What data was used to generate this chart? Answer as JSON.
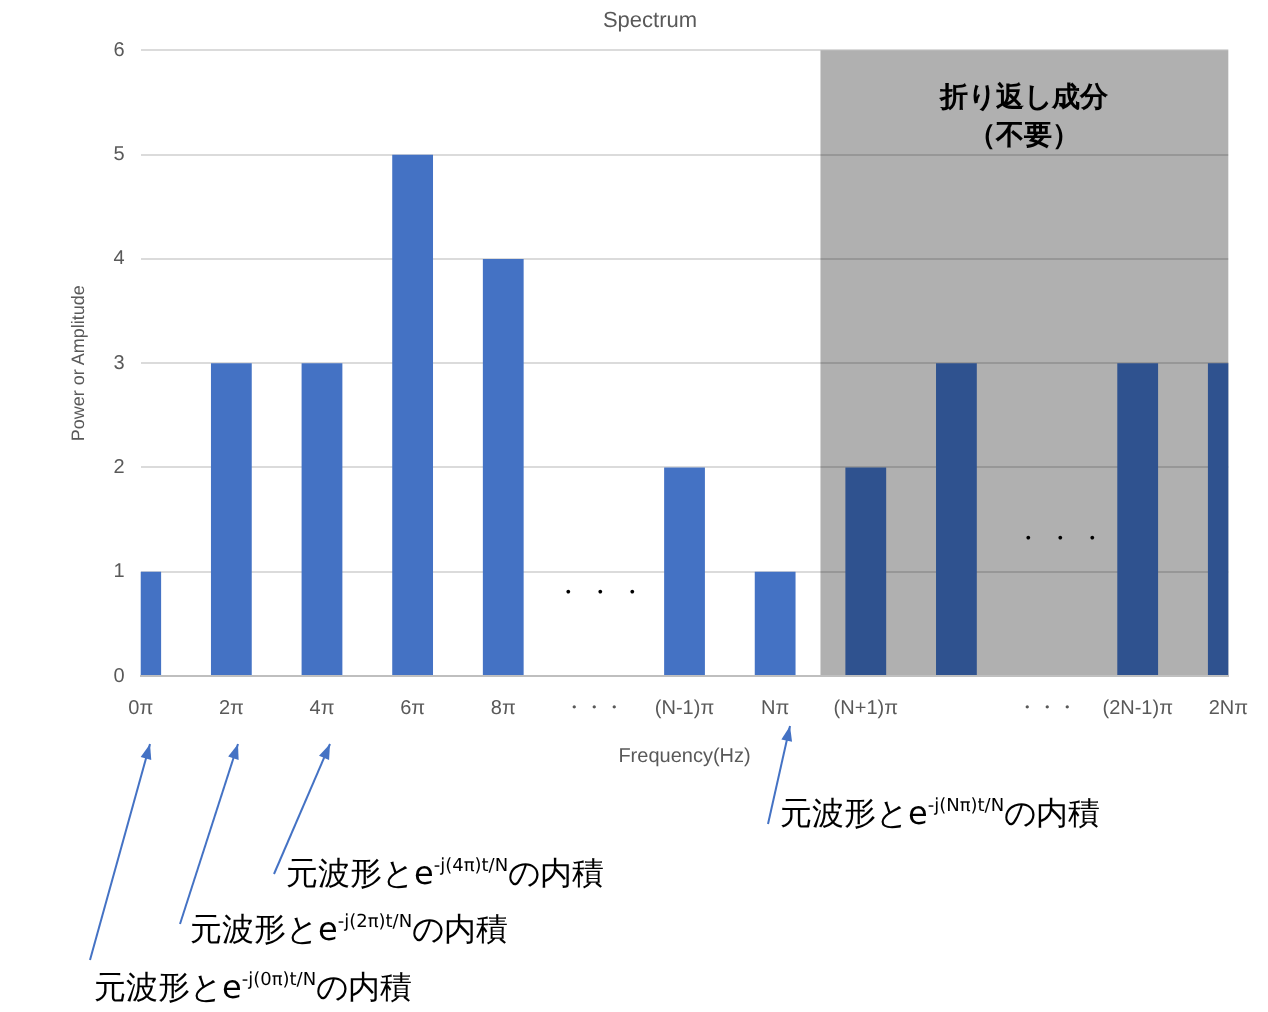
{
  "chart_data": {
    "type": "bar",
    "title": "Spectrum",
    "xlabel": "Frequency(Hz)",
    "ylabel": "Power or Amplitude",
    "categories": [
      "0π",
      "2π",
      "4π",
      "6π",
      "8π",
      "・・・",
      "(N-1)π",
      "Nπ",
      "(N+1)π",
      null,
      "・・・",
      "(2N-1)π",
      "2Nπ"
    ],
    "values": [
      1,
      3,
      3,
      5,
      4,
      null,
      2,
      1,
      2,
      3,
      null,
      3,
      3
    ],
    "colors": [
      "#4472c4",
      "#4472c4",
      "#4472c4",
      "#4472c4",
      "#4472c4",
      "#4472c4",
      "#4472c4",
      "#4472c4",
      "#2f528f",
      "#2f528f",
      "#2f528f",
      "#2f528f",
      "#2f528f"
    ],
    "ylim": [
      0,
      6
    ],
    "yticks": [
      0,
      1,
      2,
      3,
      4,
      5,
      6
    ],
    "grid": "y",
    "bands": [
      {
        "axis": "x",
        "from": "(N+1)π",
        "to": "2Nπ",
        "label": "折り返し成分（不要）",
        "color": "#b0b0b0"
      }
    ],
    "annotations": [
      "元波形とe$^{-j(0π)t/N}$の内積",
      "元波形とe$^{-j(2π)t/N}$の内積",
      "元波形とe$^{-j(4π)t/N}$の内積",
      "元波形とe$^{-j(Nπ)t/N}$の内積",
      "・ ・ ・",
      "・ ・ ・"
    ]
  }
}
